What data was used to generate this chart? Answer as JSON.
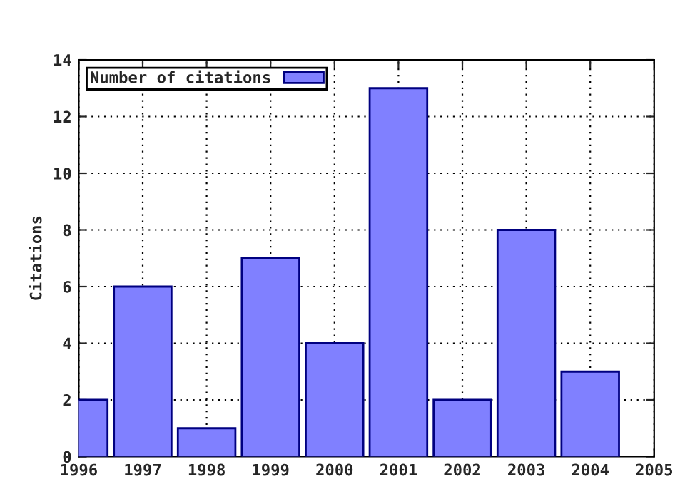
{
  "chart_data": {
    "type": "bar",
    "ylabel": "Citations",
    "x": [
      1996,
      1997,
      1998,
      1999,
      2000,
      2001,
      2002,
      2003,
      2004
    ],
    "series": [
      {
        "name": "Number of citations",
        "color": "#8080ff",
        "values": [
          2,
          6,
          1,
          7,
          4,
          13,
          2,
          8,
          3
        ]
      }
    ],
    "xlim": [
      1996,
      2005
    ],
    "xticks": [
      1996,
      1997,
      1998,
      1999,
      2000,
      2001,
      2002,
      2003,
      2004,
      2005
    ],
    "ylim": [
      0,
      14
    ],
    "yticks": [
      0,
      2,
      4,
      6,
      8,
      10,
      12,
      14
    ],
    "grid": true,
    "legend": "top left"
  }
}
